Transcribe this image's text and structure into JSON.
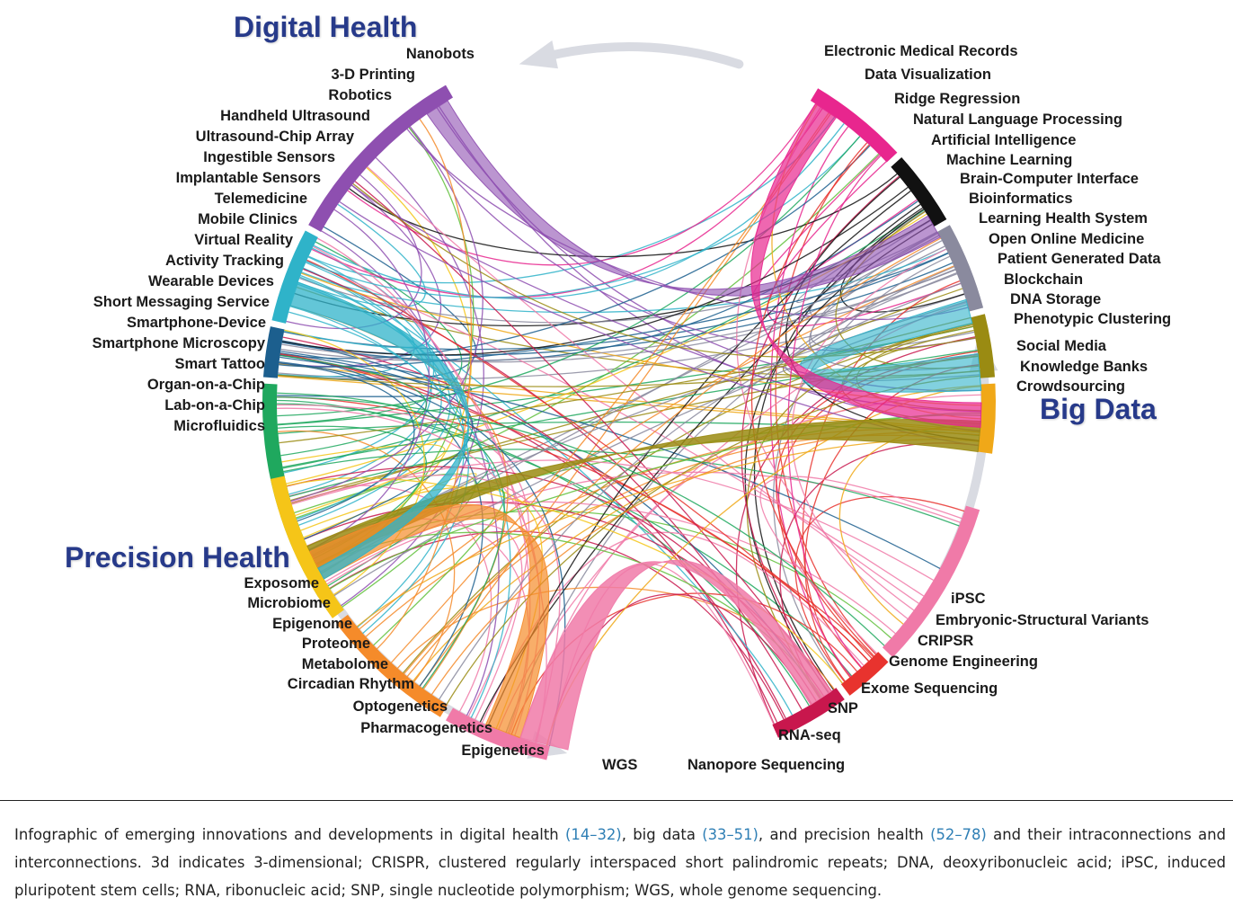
{
  "headings": {
    "digital": "Digital Health",
    "bigdata": "Big Data",
    "precision": "Precision Health"
  },
  "labels": {
    "digital": [
      "Nanobots",
      "3-D Printing",
      "Robotics",
      "Handheld Ultrasound",
      "Ultrasound-Chip Array",
      "Ingestible Sensors",
      "Implantable Sensors",
      "Telemedicine",
      "Mobile Clinics",
      "Virtual Reality",
      "Activity Tracking",
      "Wearable Devices",
      "Short Messaging Service",
      "Smartphone-Device",
      "Smartphone Microscopy",
      "Smart Tattoo",
      "Organ-on-a-Chip",
      "Lab-on-a-Chip",
      "Microfluidics"
    ],
    "bigdata": [
      "Electronic Medical Records",
      "Data Visualization",
      "Ridge Regression",
      "Natural Language Processing",
      "Artificial Intelligence",
      "Machine Learning",
      "Brain-Computer Interface",
      "Bioinformatics",
      "Learning Health System",
      "Open Online Medicine",
      "Patient Generated Data",
      "Blockchain",
      "DNA Storage",
      "Phenotypic Clustering",
      "Social Media",
      "Knowledge Banks",
      "Crowdsourcing"
    ],
    "precision_left": [
      "Exposome",
      "Microbiome",
      "Epigenome",
      "Proteome",
      "Metabolome",
      "Circadian Rhythm",
      "Optogenetics",
      "Pharmacogenetics",
      "Epigenetics"
    ],
    "precision_bottom": [
      "WGS",
      "Nanopore Sequencing"
    ],
    "precision_right": [
      "iPSC",
      "Embryonic-Structural Variants",
      "CRIPSR",
      "Genome Engineering",
      "Exome Sequencing",
      "SNP",
      "RNA-seq"
    ]
  },
  "caption": {
    "p1": "Infographic of emerging innovations and developments in digital health ",
    "r1": "(14–32)",
    "p2": ", big data ",
    "r2": "(33–51)",
    "p3": ", and precision health ",
    "r3": "(52–78)",
    "p4": " and their intraconnections and interconnections. 3d indicates 3-dimensional; CRISPR, clustered regularly interspaced short palindromic repeats; DNA, deoxyribonucleic acid; iPSC, induced pluripotent stem cells; RNA, ribonucleic acid; SNP, single nucleotide polymorphism; WGS, whole genome sequencing."
  },
  "colors": {
    "heading": "#273a8a",
    "reference": "#2f7fb5",
    "segments": [
      "#8e4fb0",
      "#2fb3c9",
      "#1c5f8e",
      "#1fa85e",
      "#5fbf3a",
      "#e8268e",
      "#111111",
      "#8a8a9e",
      "#9a8b12",
      "#f0a818",
      "#c8174d",
      "#e8332e",
      "#f07aa8",
      "#f58b2a",
      "#f5c518"
    ]
  }
}
